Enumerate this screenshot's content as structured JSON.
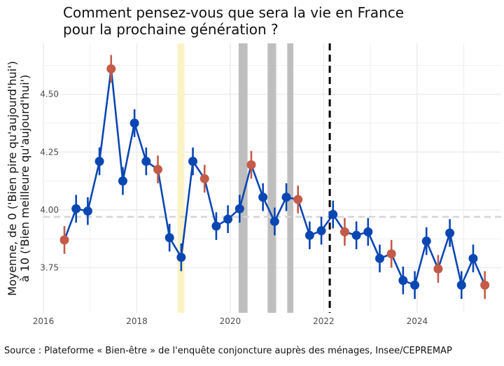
{
  "chart_data": {
    "type": "line",
    "title_line1": "Comment pensez-vous que sera la vie en France",
    "title_line2": "pour la prochaine génération ?",
    "ylabel_line1": "Moyenne, de 0 ('Bien pire qu'aujourd'hui')",
    "ylabel_line2": "à 10 ('Bien meilleure qu'aujourd'hui')",
    "xlabel": "",
    "caption": "Source : Plateforme « Bien-être » de l'enquête conjoncture auprès des ménages, Insee/CEPREMAP",
    "xlim": [
      2016.0,
      2025.8
    ],
    "ylim": [
      3.555,
      4.72
    ],
    "x_ticks": [
      2016,
      2018,
      2020,
      2022,
      2024
    ],
    "y_ticks": [
      3.75,
      4.0,
      4.25,
      4.5
    ],
    "y_tick_labels": [
      "3.75",
      "4.00",
      "4.25",
      "4.50"
    ],
    "reference_line": 3.97,
    "vertical_dashed_line": 2022.13,
    "highlight_bands": [
      {
        "from": 2018.87,
        "to": 2019.02,
        "color": "#fbf3c5"
      },
      {
        "from": 2020.18,
        "to": 2020.37,
        "color": "#bebebe"
      },
      {
        "from": 2020.8,
        "to": 2020.98,
        "color": "#bebebe"
      },
      {
        "from": 2021.22,
        "to": 2021.35,
        "color": "#bebebe"
      }
    ],
    "colors": {
      "line": "#0b47b3",
      "point": "#0b47b3",
      "highlight_point": "#c45a48",
      "grid": "#ebebeb",
      "reference": "#d4d4d4"
    },
    "points": [
      {
        "x": 2016.45,
        "y": 3.87,
        "lo": 3.81,
        "hi": 3.93,
        "highlight": true
      },
      {
        "x": 2016.7,
        "y": 4.005,
        "lo": 3.945,
        "hi": 4.065,
        "highlight": false
      },
      {
        "x": 2016.95,
        "y": 3.995,
        "lo": 3.935,
        "hi": 4.055,
        "highlight": false
      },
      {
        "x": 2017.2,
        "y": 4.21,
        "lo": 4.15,
        "hi": 4.27,
        "highlight": false
      },
      {
        "x": 2017.45,
        "y": 4.61,
        "lo": 4.55,
        "hi": 4.67,
        "highlight": true
      },
      {
        "x": 2017.7,
        "y": 4.125,
        "lo": 4.065,
        "hi": 4.185,
        "highlight": false
      },
      {
        "x": 2017.95,
        "y": 4.375,
        "lo": 4.315,
        "hi": 4.435,
        "highlight": false
      },
      {
        "x": 2018.2,
        "y": 4.21,
        "lo": 4.15,
        "hi": 4.27,
        "highlight": false
      },
      {
        "x": 2018.45,
        "y": 4.175,
        "lo": 4.115,
        "hi": 4.235,
        "highlight": true
      },
      {
        "x": 2018.7,
        "y": 3.88,
        "lo": 3.82,
        "hi": 3.94,
        "highlight": false
      },
      {
        "x": 2018.95,
        "y": 3.795,
        "lo": 3.735,
        "hi": 3.855,
        "highlight": false
      },
      {
        "x": 2019.2,
        "y": 4.21,
        "lo": 4.15,
        "hi": 4.27,
        "highlight": false
      },
      {
        "x": 2019.45,
        "y": 4.135,
        "lo": 4.075,
        "hi": 4.195,
        "highlight": true
      },
      {
        "x": 2019.7,
        "y": 3.93,
        "lo": 3.87,
        "hi": 3.99,
        "highlight": false
      },
      {
        "x": 2019.95,
        "y": 3.96,
        "lo": 3.9,
        "hi": 4.02,
        "highlight": false
      },
      {
        "x": 2020.2,
        "y": 4.005,
        "lo": 3.945,
        "hi": 4.065,
        "highlight": false
      },
      {
        "x": 2020.45,
        "y": 4.195,
        "lo": 4.135,
        "hi": 4.255,
        "highlight": true
      },
      {
        "x": 2020.7,
        "y": 4.055,
        "lo": 3.995,
        "hi": 4.115,
        "highlight": false
      },
      {
        "x": 2020.95,
        "y": 3.95,
        "lo": 3.89,
        "hi": 4.01,
        "highlight": false
      },
      {
        "x": 2021.2,
        "y": 4.055,
        "lo": 3.995,
        "hi": 4.115,
        "highlight": false
      },
      {
        "x": 2021.45,
        "y": 4.045,
        "lo": 3.985,
        "hi": 4.105,
        "highlight": true
      },
      {
        "x": 2021.7,
        "y": 3.89,
        "lo": 3.83,
        "hi": 3.95,
        "highlight": false
      },
      {
        "x": 2021.95,
        "y": 3.91,
        "lo": 3.85,
        "hi": 3.97,
        "highlight": false
      },
      {
        "x": 2022.2,
        "y": 3.98,
        "lo": 3.92,
        "hi": 4.04,
        "highlight": false
      },
      {
        "x": 2022.45,
        "y": 3.905,
        "lo": 3.845,
        "hi": 3.965,
        "highlight": true
      },
      {
        "x": 2022.7,
        "y": 3.89,
        "lo": 3.83,
        "hi": 3.95,
        "highlight": false
      },
      {
        "x": 2022.95,
        "y": 3.905,
        "lo": 3.845,
        "hi": 3.965,
        "highlight": false
      },
      {
        "x": 2023.2,
        "y": 3.79,
        "lo": 3.73,
        "hi": 3.85,
        "highlight": false
      },
      {
        "x": 2023.45,
        "y": 3.81,
        "lo": 3.75,
        "hi": 3.87,
        "highlight": true
      },
      {
        "x": 2023.7,
        "y": 3.695,
        "lo": 3.635,
        "hi": 3.755,
        "highlight": false
      },
      {
        "x": 2023.95,
        "y": 3.675,
        "lo": 3.615,
        "hi": 3.735,
        "highlight": false
      },
      {
        "x": 2024.2,
        "y": 3.865,
        "lo": 3.805,
        "hi": 3.925,
        "highlight": false
      },
      {
        "x": 2024.45,
        "y": 3.745,
        "lo": 3.685,
        "hi": 3.805,
        "highlight": true
      },
      {
        "x": 2024.7,
        "y": 3.9,
        "lo": 3.84,
        "hi": 3.96,
        "highlight": false
      },
      {
        "x": 2024.95,
        "y": 3.675,
        "lo": 3.615,
        "hi": 3.735,
        "highlight": false
      },
      {
        "x": 2025.2,
        "y": 3.79,
        "lo": 3.73,
        "hi": 3.85,
        "highlight": false
      },
      {
        "x": 2025.45,
        "y": 3.675,
        "lo": 3.615,
        "hi": 3.735,
        "highlight": true
      }
    ]
  }
}
